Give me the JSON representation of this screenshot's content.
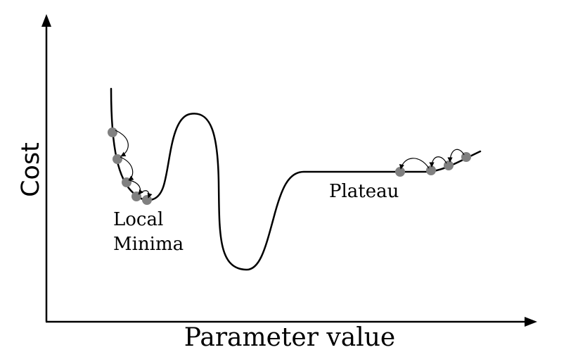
{
  "diagram": {
    "x_axis_label": "Parameter value",
    "y_axis_label": "Cost",
    "annotations": {
      "local_minima_line1": "Local",
      "local_minima_line2": "Minima",
      "plateau": "Plateau"
    },
    "colors": {
      "curve": "#000000",
      "axes": "#000000",
      "step_marker": "#808080",
      "background": "#ffffff"
    }
  }
}
